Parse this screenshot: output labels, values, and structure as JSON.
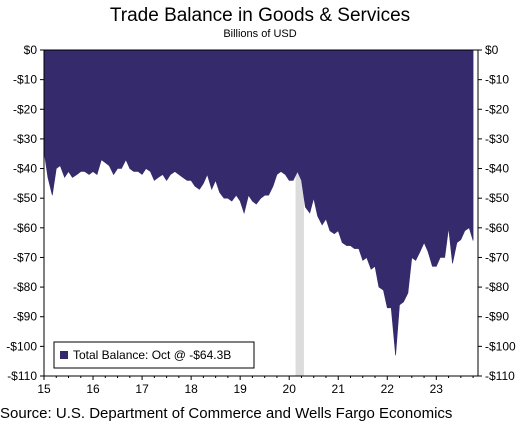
{
  "chart_data": {
    "type": "area",
    "title": "Trade Balance in Goods & Services",
    "subtitle": "Billions of USD",
    "source": "Source: U.S. Department of Commerce and Wells Fargo Economics",
    "legend": {
      "label": "Total Balance: Oct @ -$64.3B",
      "placement": "bottom-left",
      "color": "#352a6b"
    },
    "series_color": "#352a6b",
    "recession_color": "#dcdcdc",
    "recession_shading": [
      [
        20.13,
        20.3
      ]
    ],
    "xlim": [
      15,
      23.85
    ],
    "ylim": [
      -110,
      0
    ],
    "x_ticks": [
      15,
      16,
      17,
      18,
      19,
      20,
      21,
      22,
      23
    ],
    "x_tick_labels": [
      "15",
      "16",
      "17",
      "18",
      "19",
      "20",
      "21",
      "22",
      "23"
    ],
    "y_ticks": [
      0,
      -10,
      -20,
      -30,
      -40,
      -50,
      -60,
      -70,
      -80,
      -90,
      -100,
      -110
    ],
    "y_tick_labels": [
      "$0",
      "-$10",
      "-$20",
      "-$30",
      "-$40",
      "-$50",
      "-$60",
      "-$70",
      "-$80",
      "-$90",
      "-$100",
      "-$110"
    ],
    "grid": false,
    "series": [
      {
        "name": "Total Balance",
        "x": [
          15.0,
          15.08,
          15.17,
          15.25,
          15.33,
          15.42,
          15.5,
          15.58,
          15.67,
          15.75,
          15.83,
          15.92,
          16.0,
          16.08,
          16.17,
          16.25,
          16.33,
          16.42,
          16.5,
          16.58,
          16.67,
          16.75,
          16.83,
          16.92,
          17.0,
          17.08,
          17.17,
          17.25,
          17.33,
          17.42,
          17.5,
          17.58,
          17.67,
          17.75,
          17.83,
          17.92,
          18.0,
          18.08,
          18.17,
          18.25,
          18.33,
          18.42,
          18.5,
          18.58,
          18.67,
          18.75,
          18.83,
          18.92,
          19.0,
          19.08,
          19.17,
          19.25,
          19.33,
          19.42,
          19.5,
          19.58,
          19.67,
          19.75,
          19.83,
          19.92,
          20.0,
          20.08,
          20.17,
          20.25,
          20.33,
          20.42,
          20.5,
          20.58,
          20.67,
          20.75,
          20.83,
          20.92,
          21.0,
          21.08,
          21.17,
          21.25,
          21.33,
          21.42,
          21.5,
          21.58,
          21.67,
          21.75,
          21.83,
          21.92,
          22.0,
          22.08,
          22.17,
          22.25,
          22.33,
          22.42,
          22.5,
          22.58,
          22.67,
          22.75,
          22.83,
          22.92,
          23.0,
          23.08,
          23.17,
          23.25,
          23.33,
          23.42,
          23.5,
          23.58,
          23.67,
          23.75
        ],
        "values": [
          -34,
          -43,
          -49,
          -40,
          -39,
          -43,
          -41,
          -43,
          -42,
          -41,
          -41,
          -42,
          -41,
          -42,
          -37,
          -38,
          -39,
          -42,
          -40,
          -40,
          -37,
          -40,
          -41,
          -41,
          -42,
          -40,
          -41,
          -44,
          -43,
          -42,
          -44,
          -42,
          -41,
          -42,
          -43,
          -44,
          -44,
          -46,
          -47,
          -45,
          -42,
          -47,
          -44,
          -48,
          -50,
          -50,
          -51,
          -49,
          -51,
          -55,
          -49,
          -51,
          -52,
          -50,
          -49,
          -49,
          -46,
          -42,
          -41,
          -42,
          -44,
          -44,
          -41,
          -44,
          -53,
          -55,
          -50,
          -56,
          -59,
          -57,
          -61,
          -62,
          -61,
          -65,
          -66,
          -66,
          -67,
          -67,
          -71,
          -70,
          -74,
          -73,
          -80,
          -81,
          -87,
          -87,
          -103,
          -86,
          -85,
          -82,
          -70,
          -71,
          -68,
          -65,
          -68,
          -73,
          -73,
          -70,
          -70,
          -60,
          -72,
          -65,
          -64,
          -61,
          -60,
          -64.3
        ]
      }
    ]
  }
}
